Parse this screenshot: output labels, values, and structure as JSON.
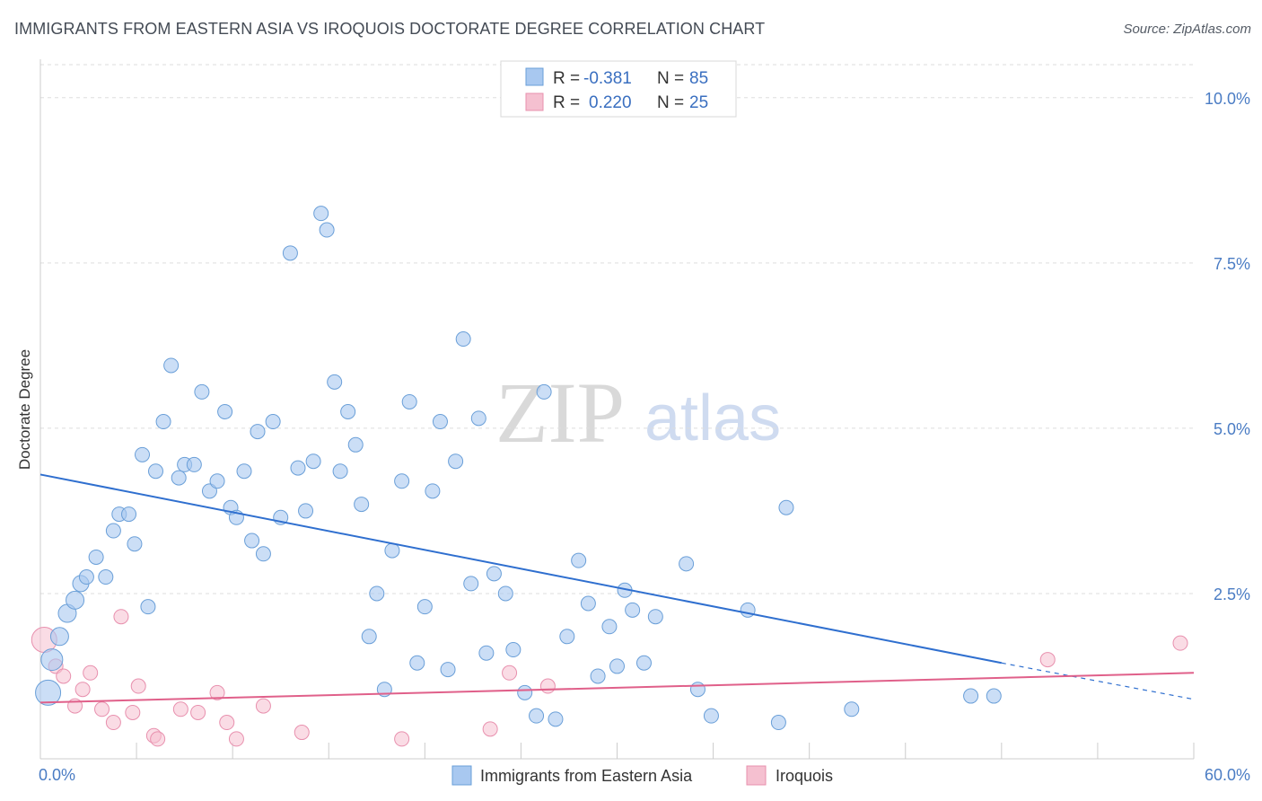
{
  "header": {
    "title": "IMMIGRANTS FROM EASTERN ASIA VS IROQUOIS DOCTORATE DEGREE CORRELATION CHART",
    "source": "Source: ZipAtlas.com"
  },
  "watermark": {
    "zip": "ZIP",
    "atlas": "atlas"
  },
  "legend": {
    "r_label": "R =",
    "n_label": "N =",
    "items": [
      {
        "r": "-0.381",
        "n": "85",
        "color": "#a8c8f0"
      },
      {
        "r": "0.220",
        "n": "25",
        "color": "#f5b8cb"
      }
    ]
  },
  "colors": {
    "blue_fill": "#a8c8f0",
    "blue_stroke": "#6a9fd8",
    "blue_line": "#2f6fcf",
    "pink_fill": "#f5c0d0",
    "pink_stroke": "#e890ae",
    "pink_line": "#e0608a",
    "grid": "#dddddd",
    "tick_text": "#4a7cc4"
  },
  "chart_data": {
    "type": "scatter",
    "title": "IMMIGRANTS FROM EASTERN ASIA VS IROQUOIS DOCTORATE DEGREE CORRELATION CHART",
    "xlabel": "",
    "ylabel": "Doctorate Degree",
    "xlim": [
      0,
      60
    ],
    "ylim": [
      0,
      10.5
    ],
    "x_tick_labels": [
      "0.0%",
      "60.0%"
    ],
    "y_ticks": [
      2.5,
      5.0,
      7.5,
      10.0
    ],
    "y_tick_labels": [
      "2.5%",
      "5.0%",
      "7.5%",
      "10.0%"
    ],
    "grid": true,
    "legend_position": "top-center",
    "series": [
      {
        "name": "Immigrants from Eastern Asia",
        "color": "#a8c8f0",
        "trend": {
          "x": [
            0,
            50
          ],
          "y": [
            4.3,
            1.45
          ],
          "dashed_to": [
            60,
            0.9
          ]
        },
        "points": [
          [
            0.4,
            1.0,
            14
          ],
          [
            0.6,
            1.5,
            12
          ],
          [
            1.0,
            1.85,
            10
          ],
          [
            1.4,
            2.2,
            10
          ],
          [
            1.8,
            2.4,
            10
          ],
          [
            2.1,
            2.65,
            9
          ],
          [
            2.4,
            2.75,
            8
          ],
          [
            2.9,
            3.05,
            8
          ],
          [
            3.4,
            2.75,
            8
          ],
          [
            3.8,
            3.45,
            8
          ],
          [
            4.1,
            3.7,
            8
          ],
          [
            4.6,
            3.7,
            8
          ],
          [
            4.9,
            3.25,
            8
          ],
          [
            5.3,
            4.6,
            8
          ],
          [
            5.6,
            2.3,
            8
          ],
          [
            6.0,
            4.35,
            8
          ],
          [
            6.4,
            5.1,
            8
          ],
          [
            6.8,
            5.95,
            8
          ],
          [
            7.2,
            4.25,
            8
          ],
          [
            7.5,
            4.45,
            8
          ],
          [
            8.0,
            4.45,
            8
          ],
          [
            8.4,
            5.55,
            8
          ],
          [
            8.8,
            4.05,
            8
          ],
          [
            9.2,
            4.2,
            8
          ],
          [
            9.6,
            5.25,
            8
          ],
          [
            9.9,
            3.8,
            8
          ],
          [
            10.2,
            3.65,
            8
          ],
          [
            10.6,
            4.35,
            8
          ],
          [
            11.0,
            3.3,
            8
          ],
          [
            11.3,
            4.95,
            8
          ],
          [
            11.6,
            3.1,
            8
          ],
          [
            12.1,
            5.1,
            8
          ],
          [
            12.5,
            3.65,
            8
          ],
          [
            13.0,
            7.65,
            8
          ],
          [
            13.4,
            4.4,
            8
          ],
          [
            13.8,
            3.75,
            8
          ],
          [
            14.2,
            4.5,
            8
          ],
          [
            14.6,
            8.25,
            8
          ],
          [
            14.9,
            8.0,
            8
          ],
          [
            15.3,
            5.7,
            8
          ],
          [
            15.6,
            4.35,
            8
          ],
          [
            16.0,
            5.25,
            8
          ],
          [
            16.4,
            4.75,
            8
          ],
          [
            16.7,
            3.85,
            8
          ],
          [
            17.1,
            1.85,
            8
          ],
          [
            17.5,
            2.5,
            8
          ],
          [
            17.9,
            1.05,
            8
          ],
          [
            18.3,
            3.15,
            8
          ],
          [
            18.8,
            4.2,
            8
          ],
          [
            19.2,
            5.4,
            8
          ],
          [
            19.6,
            1.45,
            8
          ],
          [
            20.0,
            2.3,
            8
          ],
          [
            20.4,
            4.05,
            8
          ],
          [
            20.8,
            5.1,
            8
          ],
          [
            21.2,
            1.35,
            8
          ],
          [
            21.6,
            4.5,
            8
          ],
          [
            22.0,
            6.35,
            8
          ],
          [
            22.4,
            2.65,
            8
          ],
          [
            22.8,
            5.15,
            8
          ],
          [
            23.2,
            1.6,
            8
          ],
          [
            23.6,
            2.8,
            8
          ],
          [
            24.2,
            2.5,
            8
          ],
          [
            24.6,
            1.65,
            8
          ],
          [
            25.2,
            1.0,
            8
          ],
          [
            25.8,
            0.65,
            8
          ],
          [
            26.2,
            5.55,
            8
          ],
          [
            26.8,
            0.6,
            8
          ],
          [
            27.4,
            1.85,
            8
          ],
          [
            28.0,
            3.0,
            8
          ],
          [
            28.5,
            2.35,
            8
          ],
          [
            29.0,
            1.25,
            8
          ],
          [
            29.6,
            2.0,
            8
          ],
          [
            30.0,
            1.4,
            8
          ],
          [
            30.4,
            2.55,
            8
          ],
          [
            30.8,
            2.25,
            8
          ],
          [
            31.4,
            1.45,
            8
          ],
          [
            32.0,
            2.15,
            8
          ],
          [
            33.6,
            2.95,
            8
          ],
          [
            34.2,
            1.05,
            8
          ],
          [
            34.9,
            0.65,
            8
          ],
          [
            36.8,
            2.25,
            8
          ],
          [
            38.4,
            0.55,
            8
          ],
          [
            38.8,
            3.8,
            8
          ],
          [
            42.2,
            0.75,
            8
          ],
          [
            48.4,
            0.95,
            8
          ],
          [
            49.6,
            0.95,
            8
          ]
        ]
      },
      {
        "name": "Iroquois",
        "color": "#f5b8cb",
        "trend": {
          "x": [
            0,
            60
          ],
          "y": [
            0.85,
            1.3
          ]
        },
        "points": [
          [
            0.2,
            1.8,
            14
          ],
          [
            0.8,
            1.4,
            8
          ],
          [
            1.2,
            1.25,
            8
          ],
          [
            1.8,
            0.8,
            8
          ],
          [
            2.2,
            1.05,
            8
          ],
          [
            2.6,
            1.3,
            8
          ],
          [
            3.2,
            0.75,
            8
          ],
          [
            3.8,
            0.55,
            8
          ],
          [
            4.2,
            2.15,
            8
          ],
          [
            4.8,
            0.7,
            8
          ],
          [
            5.1,
            1.1,
            8
          ],
          [
            5.9,
            0.35,
            8
          ],
          [
            6.1,
            0.3,
            8
          ],
          [
            7.3,
            0.75,
            8
          ],
          [
            8.2,
            0.7,
            8
          ],
          [
            9.2,
            1.0,
            8
          ],
          [
            9.7,
            0.55,
            8
          ],
          [
            10.2,
            0.3,
            8
          ],
          [
            11.6,
            0.8,
            8
          ],
          [
            13.6,
            0.4,
            8
          ],
          [
            18.8,
            0.3,
            8
          ],
          [
            23.4,
            0.45,
            8
          ],
          [
            24.4,
            1.3,
            8
          ],
          [
            26.4,
            1.1,
            8
          ],
          [
            52.4,
            1.5,
            8
          ],
          [
            59.3,
            1.75,
            8
          ]
        ]
      }
    ]
  }
}
